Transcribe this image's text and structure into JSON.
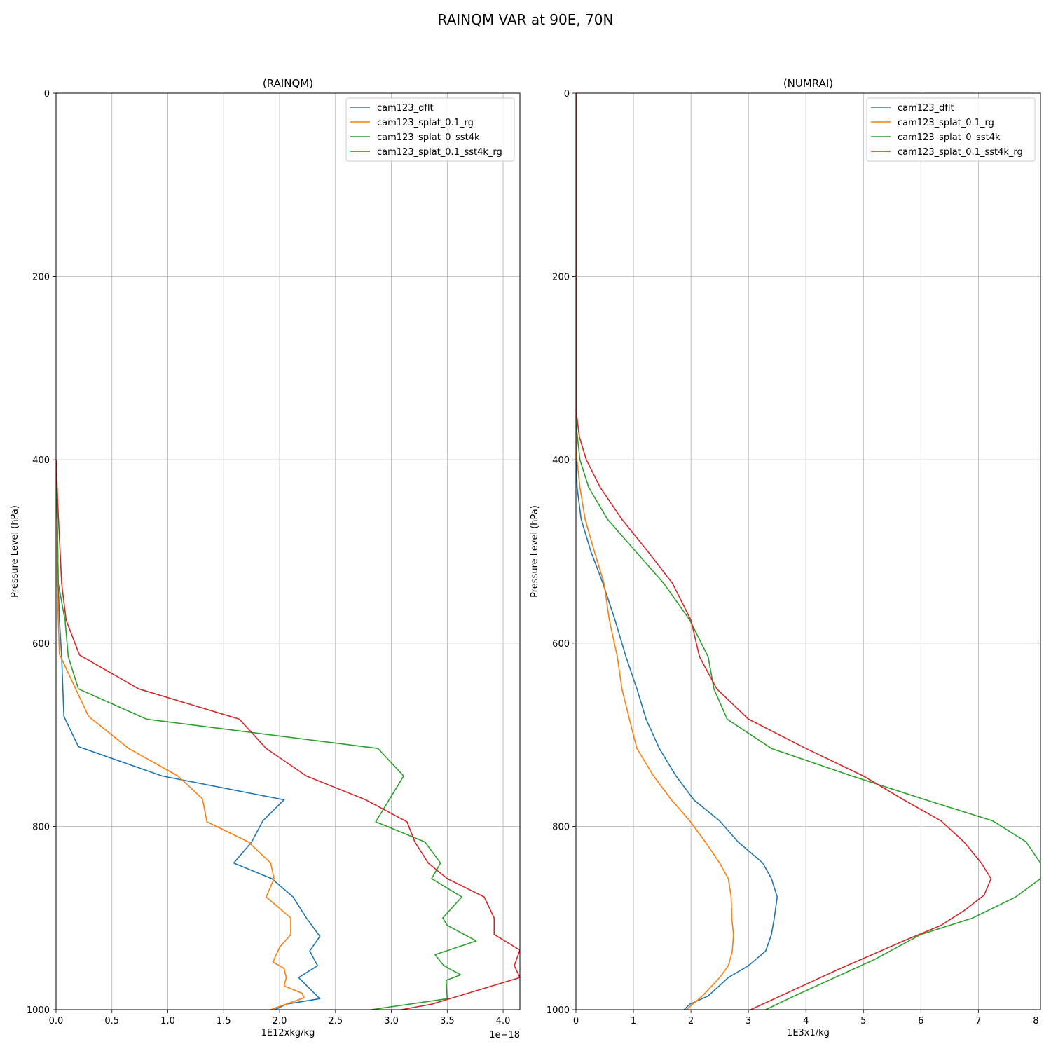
{
  "figure": {
    "title": "RAINQM VAR at 90E, 70N"
  },
  "colors": {
    "cam123_dflt": "#1f77b4",
    "cam123_splat_0.1_rg": "#ff7f0e",
    "cam123_splat_0_sst4k": "#2ca02c",
    "cam123_splat_0.1_sst4k_rg": "#d62728",
    "grid": "#b0b0b0"
  },
  "chart_data": [
    {
      "type": "line",
      "title": "(RAINQM)",
      "xlabel": "1E12xkg/kg",
      "ylabel": "Pressure Level (hPa)",
      "x_offset_text": "1e−18",
      "xlim": [
        0,
        4.15
      ],
      "ylim": [
        1000,
        0
      ],
      "xticks": [
        "0.0",
        "0.5",
        "1.0",
        "1.5",
        "2.0",
        "2.5",
        "3.0",
        "3.5",
        "4.0"
      ],
      "yticks": [
        "0",
        "200",
        "400",
        "600",
        "800",
        "1000"
      ],
      "grid": true,
      "legend": "top-right",
      "series": [
        {
          "name": "cam123_dflt",
          "x": [
            0,
            0.01,
            0.02,
            0.03,
            0.05,
            0.07,
            0.2,
            0.95,
            2.04,
            1.85,
            1.75,
            1.59,
            1.93,
            2.12,
            2.24,
            2.36,
            2.27,
            2.34,
            2.17,
            2.36,
            2.06,
            1.96
          ],
          "y": [
            400,
            460,
            535,
            575,
            615,
            680,
            713,
            745,
            771,
            794,
            817,
            840,
            857,
            877,
            900,
            920,
            936,
            952,
            965,
            988,
            994,
            1000
          ]
        },
        {
          "name": "cam123_splat_0.1_rg",
          "x": [
            0,
            0.01,
            0.01,
            0.02,
            0.03,
            0.29,
            0.65,
            1.09,
            1.31,
            1.35,
            1.72,
            1.92,
            1.95,
            1.88,
            2.1,
            2.1,
            2.0,
            1.94,
            2.04,
            2.06,
            2.04,
            2.2,
            2.22,
            1.92
          ],
          "y": [
            400,
            460,
            535,
            575,
            612,
            680,
            715,
            745,
            770,
            795,
            817,
            840,
            857,
            877,
            900,
            918,
            932,
            948,
            955,
            965,
            974,
            982,
            987,
            1000
          ]
        },
        {
          "name": "cam123_splat_0_sst4k",
          "x": [
            0,
            0.01,
            0.02,
            0.08,
            0.11,
            0.2,
            0.81,
            2.88,
            3.11,
            2.86,
            3.3,
            3.44,
            3.36,
            3.63,
            3.46,
            3.5,
            3.76,
            3.39,
            3.47,
            3.62,
            3.49,
            3.5,
            2.82
          ],
          "y": [
            400,
            460,
            535,
            575,
            615,
            650,
            683,
            715,
            745,
            795,
            817,
            840,
            857,
            877,
            900,
            908,
            925,
            940,
            952,
            962,
            968,
            988,
            1000
          ]
        },
        {
          "name": "cam123_splat_0.1_sst4k_rg",
          "x": [
            0,
            0.02,
            0.05,
            0.09,
            0.21,
            0.74,
            1.64,
            1.88,
            2.24,
            2.77,
            3.14,
            3.21,
            3.33,
            3.5,
            3.83,
            3.92,
            3.92,
            4.15,
            4.1,
            4.15,
            3.36,
            3.09
          ],
          "y": [
            400,
            460,
            535,
            575,
            613,
            650,
            683,
            715,
            745,
            771,
            795,
            817,
            840,
            857,
            877,
            900,
            918,
            935,
            952,
            965,
            994,
            1000
          ]
        }
      ]
    },
    {
      "type": "line",
      "title": "(NUMRAI)",
      "xlabel": "1E3x1/kg",
      "ylabel": "Pressure Level (hPa)",
      "xlim": [
        0,
        8.08
      ],
      "ylim": [
        1000,
        0
      ],
      "xticks": [
        "0",
        "1",
        "2",
        "3",
        "4",
        "5",
        "6",
        "7",
        "8"
      ],
      "yticks": [
        "0",
        "200",
        "400",
        "600",
        "800",
        "1000"
      ],
      "grid": true,
      "legend": "top-right",
      "series": [
        {
          "name": "cam123_dflt",
          "x": [
            0,
            0,
            0.02,
            0.09,
            0.26,
            0.47,
            0.68,
            0.87,
            1.06,
            1.22,
            1.45,
            1.74,
            2.05,
            2.5,
            2.82,
            3.25,
            3.4,
            3.5,
            3.45,
            3.4,
            3.3,
            3.0,
            2.65,
            2.3,
            1.98,
            1.88
          ],
          "y": [
            0,
            390,
            430,
            465,
            500,
            535,
            575,
            615,
            650,
            683,
            715,
            745,
            771,
            794,
            817,
            840,
            857,
            877,
            900,
            918,
            936,
            952,
            965,
            985,
            994,
            1000
          ]
        },
        {
          "name": "cam123_splat_0.1_rg",
          "x": [
            0,
            0,
            0.07,
            0.16,
            0.32,
            0.49,
            0.58,
            0.72,
            0.8,
            0.93,
            1.06,
            1.35,
            1.66,
            1.98,
            2.25,
            2.5,
            2.65,
            2.7,
            2.71,
            2.74,
            2.72,
            2.65,
            2.5,
            2.2,
            1.92
          ],
          "y": [
            0,
            390,
            430,
            465,
            500,
            535,
            575,
            615,
            650,
            683,
            715,
            745,
            771,
            794,
            817,
            840,
            857,
            877,
            900,
            918,
            936,
            952,
            965,
            985,
            1000
          ]
        },
        {
          "name": "cam123_splat_0_sst4k",
          "x": [
            0,
            0,
            0.07,
            0.22,
            0.55,
            1.04,
            1.53,
            1.98,
            2.3,
            2.4,
            2.63,
            3.4,
            4.8,
            6.08,
            7.25,
            7.83,
            8.08,
            8.08,
            7.65,
            6.9,
            6.0,
            5.2,
            3.8,
            3.3
          ],
          "y": [
            0,
            360,
            400,
            430,
            465,
            500,
            535,
            575,
            615,
            650,
            683,
            715,
            745,
            771,
            794,
            817,
            840,
            857,
            877,
            900,
            918,
            945,
            985,
            1000
          ]
        },
        {
          "name": "cam123_splat_0.1_sst4k_rg",
          "x": [
            0,
            0,
            0.06,
            0.18,
            0.42,
            0.8,
            1.25,
            1.68,
            2.0,
            2.15,
            2.45,
            3.0,
            4.0,
            5.0,
            5.7,
            6.35,
            6.75,
            7.05,
            7.22,
            7.1,
            6.75,
            6.35,
            5.7,
            4.6,
            3.04
          ],
          "y": [
            0,
            345,
            375,
            400,
            430,
            465,
            500,
            535,
            575,
            615,
            650,
            683,
            715,
            745,
            771,
            794,
            817,
            840,
            857,
            875,
            892,
            908,
            925,
            955,
            1000
          ]
        }
      ]
    }
  ]
}
